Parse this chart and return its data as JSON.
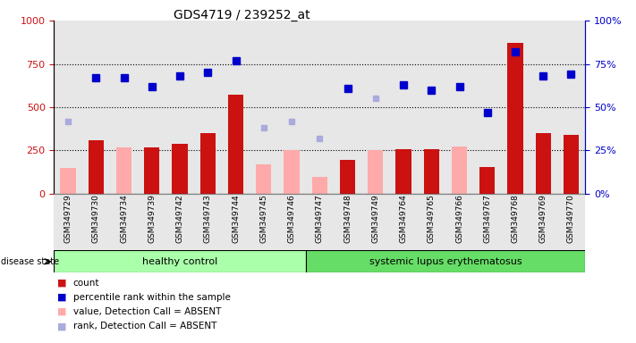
{
  "title": "GDS4719 / 239252_at",
  "samples": [
    "GSM349729",
    "GSM349730",
    "GSM349734",
    "GSM349739",
    "GSM349742",
    "GSM349743",
    "GSM349744",
    "GSM349745",
    "GSM349746",
    "GSM349747",
    "GSM349748",
    "GSM349749",
    "GSM349764",
    "GSM349765",
    "GSM349766",
    "GSM349767",
    "GSM349768",
    "GSM349769",
    "GSM349770"
  ],
  "count_values": [
    null,
    310,
    null,
    270,
    290,
    350,
    570,
    null,
    null,
    null,
    195,
    null,
    260,
    260,
    null,
    155,
    870,
    350,
    340
  ],
  "count_absent_values": [
    150,
    null,
    270,
    null,
    null,
    null,
    null,
    170,
    250,
    100,
    null,
    250,
    null,
    null,
    275,
    null,
    null,
    null,
    null
  ],
  "percentile_rank": [
    null,
    67,
    67,
    62,
    68,
    70,
    77,
    null,
    null,
    null,
    61,
    null,
    63,
    60,
    62,
    47,
    82,
    68,
    69
  ],
  "rank_absent": [
    42,
    null,
    null,
    null,
    null,
    null,
    null,
    38,
    42,
    32,
    null,
    55,
    null,
    null,
    null,
    null,
    null,
    null,
    null
  ],
  "healthy_control_count": 9,
  "group_labels": [
    "healthy control",
    "systemic lupus erythematosus"
  ],
  "legend_items": [
    "count",
    "percentile rank within the sample",
    "value, Detection Call = ABSENT",
    "rank, Detection Call = ABSENT"
  ],
  "ylim_left": [
    0,
    1000
  ],
  "ylim_right": [
    0,
    100
  ],
  "yticks_left": [
    0,
    250,
    500,
    750,
    1000
  ],
  "yticks_right": [
    0,
    25,
    50,
    75,
    100
  ],
  "color_count": "#cc1111",
  "color_percentile": "#0000cc",
  "color_absent_value": "#ffaaaa",
  "color_absent_rank": "#aaaadd",
  "bg_color": "#ffffff"
}
